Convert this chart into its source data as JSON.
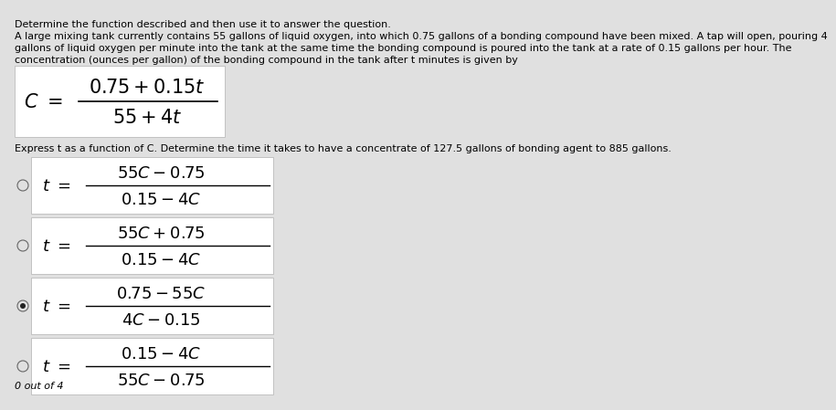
{
  "background_color": "#e0e0e0",
  "white_box_color": "#ffffff",
  "title_text": "Determine the function described and then use it to answer the question.",
  "body_lines": [
    "A large mixing tank currently contains 55 gallons of liquid oxygen, into which 0.75 gallons of a bonding compound have been mixed. A tap will open, pouring 4",
    "gallons of liquid oxygen per minute into the tank at the same time the bonding compound is poured into the tank at a rate of 0.15 gallons per hour. The",
    "concentration (ounces per gallon) of the bonding compound in the tank after t minutes is given by"
  ],
  "express_text": "Express t as a function of C. Determine the time it takes to have a concentrate of 127.5 gallons of bonding agent to 885 gallons.",
  "score_text": "0 out of 4",
  "options": [
    {
      "num": "$55C - 0.75$",
      "den": "$0.15 - 4C$",
      "selected": false
    },
    {
      "num": "$55C + 0.75$",
      "den": "$0.15 - 4C$",
      "selected": false
    },
    {
      "num": "$0.75 - 55C$",
      "den": "$4C - 0.15$",
      "selected": true
    },
    {
      "num": "$0.15 - 4C$",
      "den": "$55C - 0.75$",
      "selected": false
    }
  ],
  "text_color": "#000000",
  "border_color": "#bbbbbb",
  "radio_edge_color": "#666666",
  "radio_fill_color": "#e0e0e0",
  "selected_dot_color": "#222222",
  "font_size_small": 7.5,
  "font_size_body": 8.0,
  "font_size_formula_main": 15,
  "font_size_formula_opt": 13,
  "font_size_t_eq": 13,
  "font_size_score": 8.0
}
